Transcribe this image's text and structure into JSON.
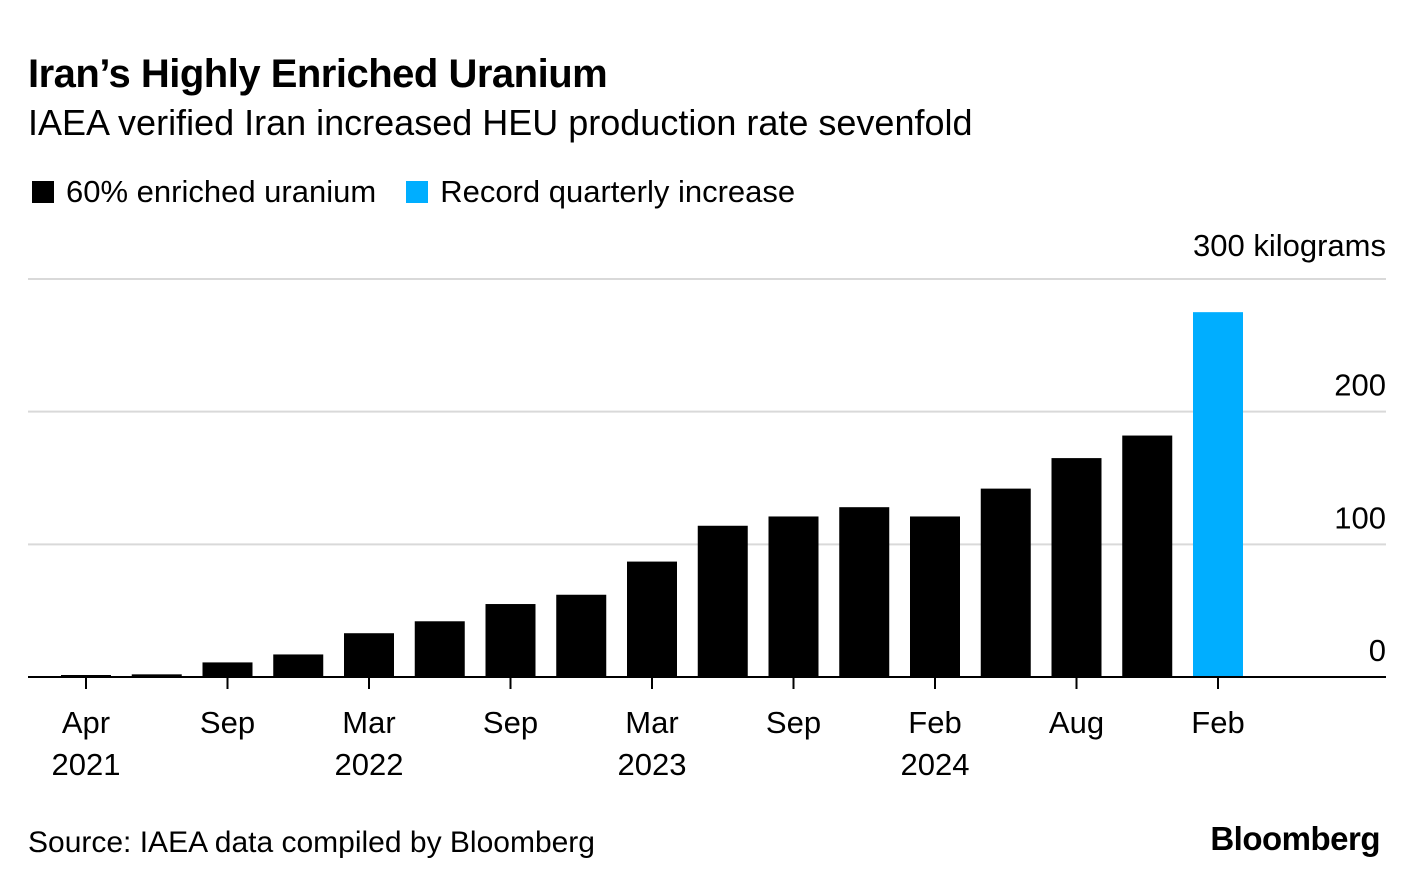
{
  "header": {
    "title": "Iran’s Highly Enriched Uranium",
    "subtitle": "IAEA verified Iran increased HEU production rate sevenfold"
  },
  "legend": [
    {
      "label": "60% enriched uranium",
      "color": "#000000"
    },
    {
      "label": "Record quarterly increase",
      "color": "#00aeff"
    }
  ],
  "footer": {
    "source": "Source: IAEA data compiled by Bloomberg",
    "brand": "Bloomberg"
  },
  "chart_data": {
    "type": "bar",
    "title": "Iran’s Highly Enriched Uranium",
    "subtitle": "IAEA verified Iran increased HEU production rate sevenfold",
    "ylabel": "300 kilograms",
    "ylim": [
      0,
      300
    ],
    "yticks": [
      {
        "value": 0,
        "label": "0"
      },
      {
        "value": 100,
        "label": "100"
      },
      {
        "value": 200,
        "label": "200"
      },
      {
        "value": 300,
        "label": "300 kilograms"
      }
    ],
    "grid": true,
    "x_ticks": [
      {
        "index": 0,
        "label": "Apr",
        "sublabel": "2021"
      },
      {
        "index": 2,
        "label": "Sep",
        "sublabel": ""
      },
      {
        "index": 4,
        "label": "Mar",
        "sublabel": "2022"
      },
      {
        "index": 6,
        "label": "Sep",
        "sublabel": ""
      },
      {
        "index": 8,
        "label": "Mar",
        "sublabel": "2023"
      },
      {
        "index": 10,
        "label": "Sep",
        "sublabel": ""
      },
      {
        "index": 12,
        "label": "Feb",
        "sublabel": "2024"
      },
      {
        "index": 14,
        "label": "Aug",
        "sublabel": ""
      },
      {
        "index": 16,
        "label": "Feb",
        "sublabel": ""
      }
    ],
    "series": [
      {
        "name": "60% enriched uranium",
        "color": "#000000",
        "values": [
          0,
          2,
          11,
          17,
          33,
          42,
          55,
          62,
          87,
          114,
          121,
          128,
          121,
          142,
          165,
          182,
          null
        ]
      },
      {
        "name": "Record quarterly increase",
        "color": "#00aeff",
        "values": [
          null,
          null,
          null,
          null,
          null,
          null,
          null,
          null,
          null,
          null,
          null,
          null,
          null,
          null,
          null,
          null,
          275
        ]
      }
    ]
  }
}
